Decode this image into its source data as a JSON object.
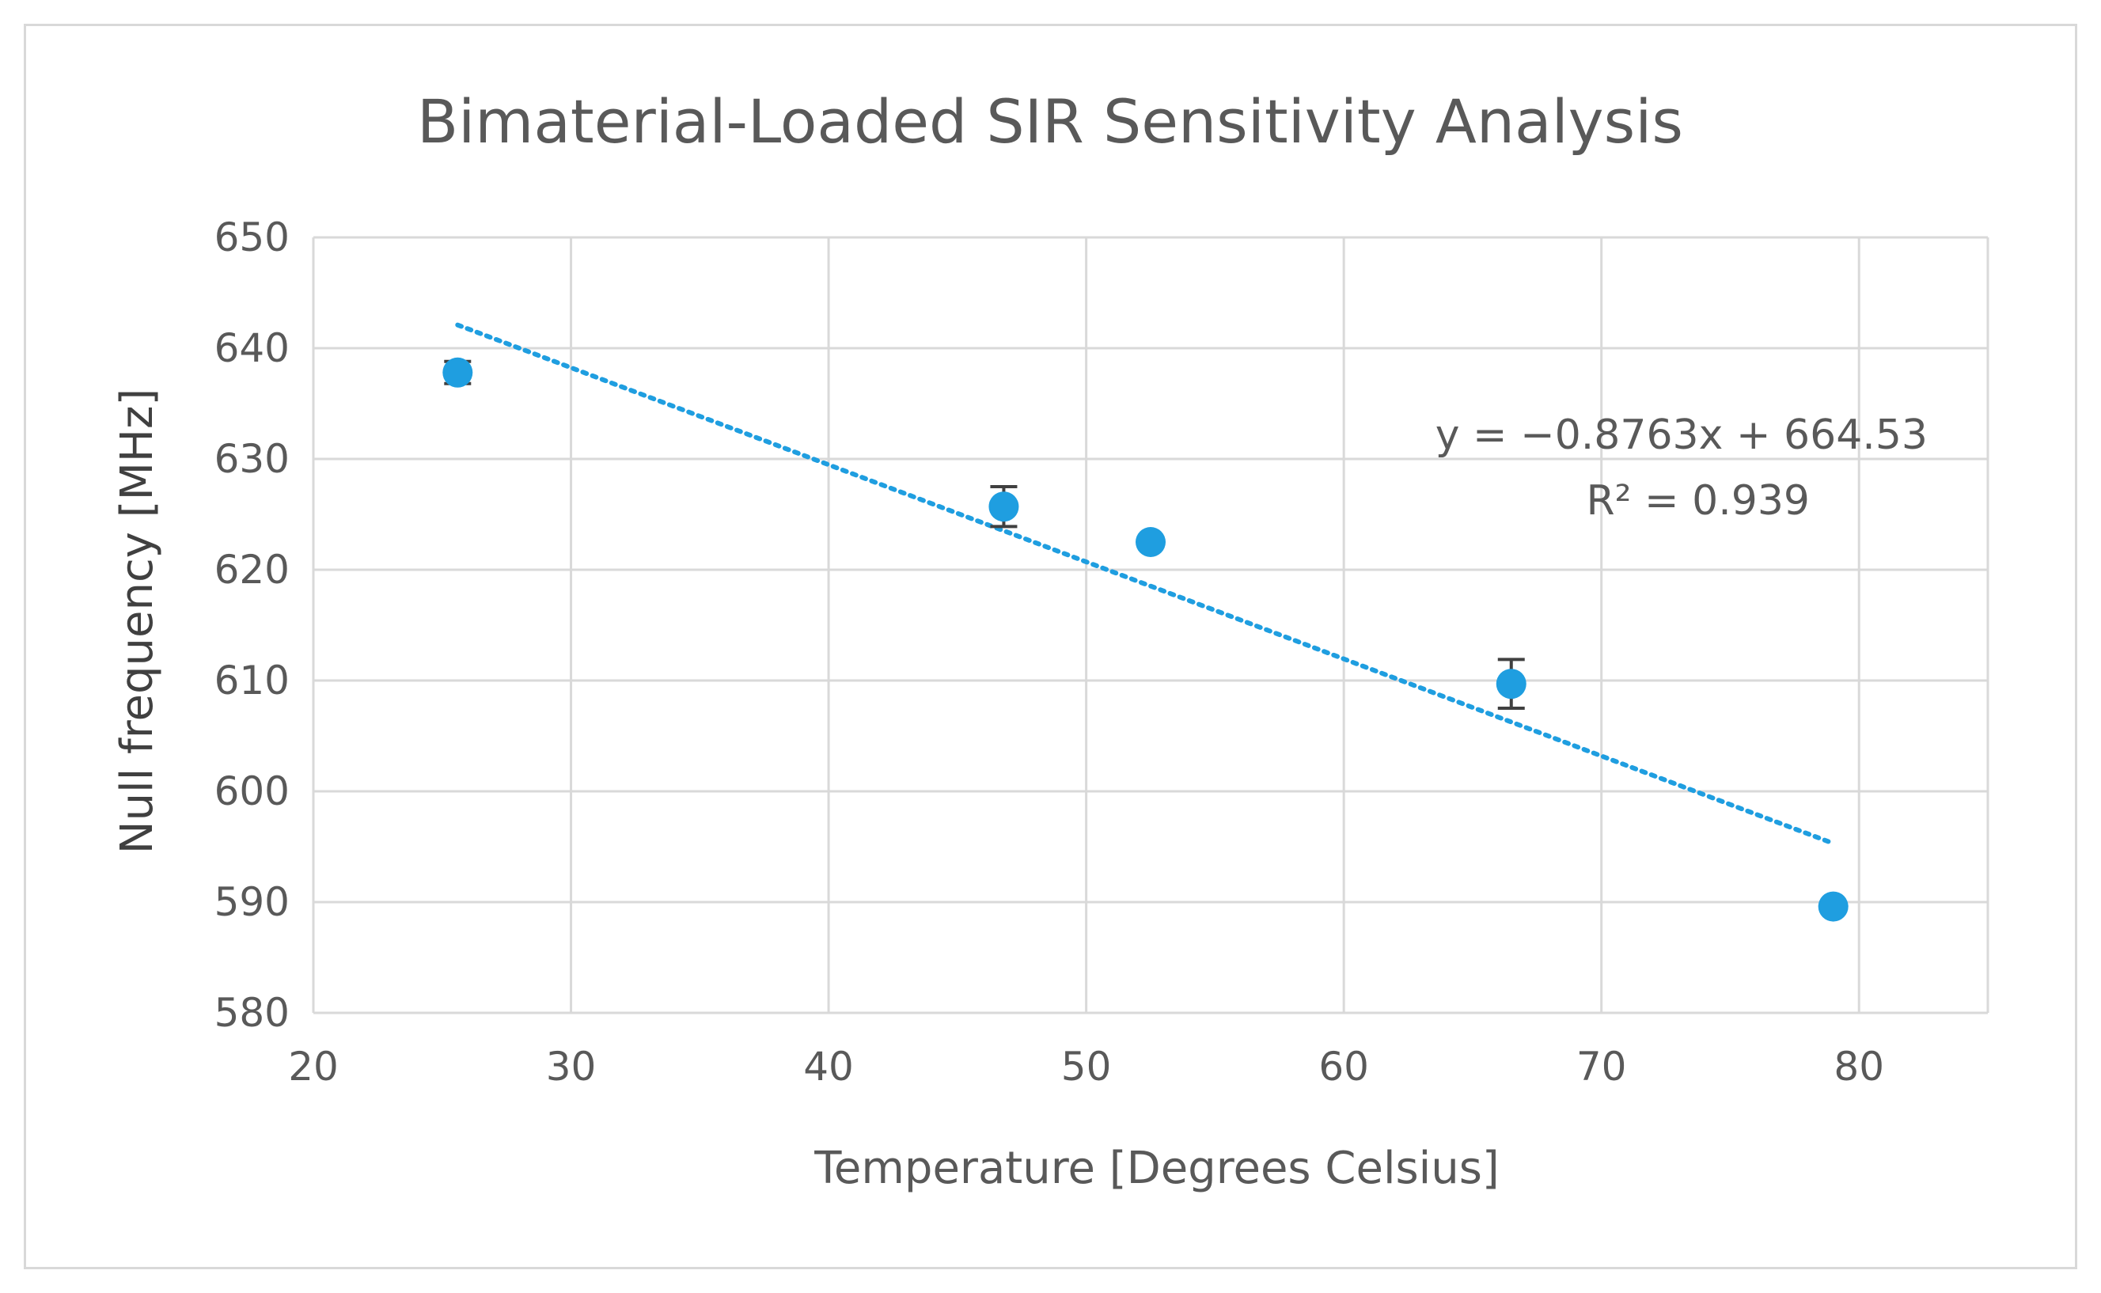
{
  "chart_data": {
    "type": "scatter",
    "title": "Bimaterial-Loaded SIR Sensitivity Analysis",
    "xlabel": "Temperature [Degrees Celsius]",
    "ylabel": "Null frequency [MHz]",
    "xlim": [
      20,
      85
    ],
    "ylim": [
      580,
      650
    ],
    "xticks": [
      20,
      30,
      40,
      50,
      60,
      70,
      80
    ],
    "yticks": [
      580,
      590,
      600,
      610,
      620,
      630,
      640,
      650
    ],
    "grid": true,
    "series": [
      {
        "name": "Null frequency",
        "color": "#1f9ee0",
        "points": [
          {
            "x": 25.6,
            "y": 637.8,
            "err": 1.0
          },
          {
            "x": 46.8,
            "y": 625.7,
            "err": 1.8
          },
          {
            "x": 52.5,
            "y": 622.5,
            "err": 0
          },
          {
            "x": 66.5,
            "y": 609.7,
            "err": 2.2
          },
          {
            "x": 79.0,
            "y": 589.6,
            "err": 0
          }
        ]
      }
    ],
    "trendline": {
      "type": "linear",
      "slope": -0.8763,
      "intercept": 664.53,
      "x_range": [
        25.6,
        79.0
      ],
      "color": "#1f9ee0",
      "style": "dotted",
      "equation_label": "y = −0.8763x + 664.53",
      "r2_label": "R² = 0.939"
    }
  }
}
